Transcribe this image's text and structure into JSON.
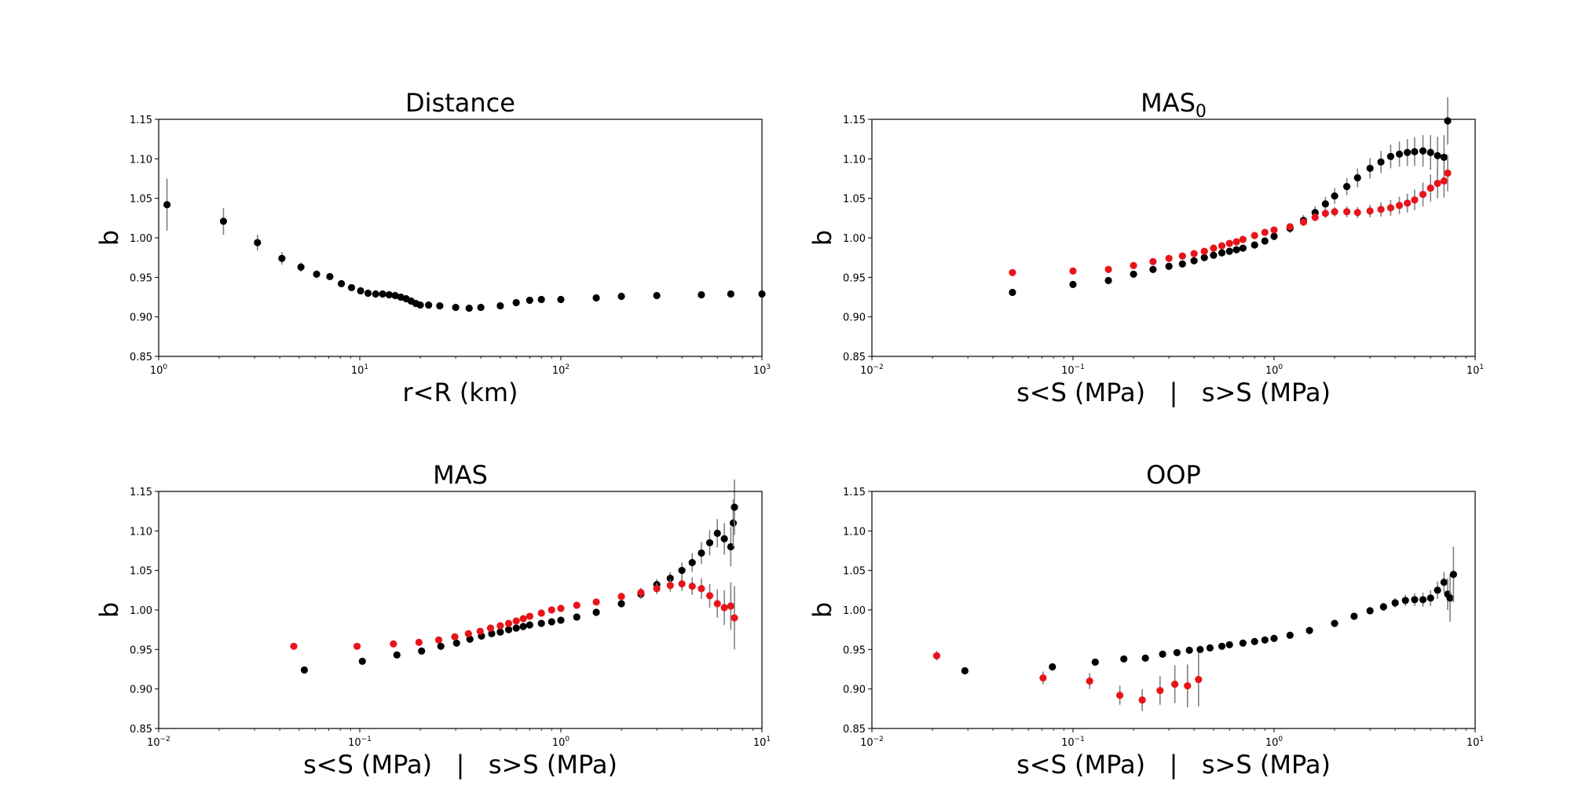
{
  "chart_data": [
    {
      "type": "scatter",
      "title": "Distance",
      "xlabel": "r<R (km)",
      "ylabel": "b",
      "xscale": "log",
      "xlim": [
        1,
        1000
      ],
      "ylim": [
        0.85,
        1.15
      ],
      "yticks": [
        "0.85",
        "0.90",
        "0.95",
        "1.00",
        "1.05",
        "1.10",
        "1.15"
      ],
      "xticks": [
        {
          "base": "10",
          "exp": "0"
        },
        {
          "base": "10",
          "exp": "1"
        },
        {
          "base": "10",
          "exp": "2"
        },
        {
          "base": "10",
          "exp": "3"
        }
      ],
      "grid": false,
      "series": [
        {
          "color": "#000000",
          "x": [
            1.1,
            2.1,
            3.1,
            4.1,
            5.1,
            6.1,
            7.1,
            8.1,
            9.1,
            10.1,
            11,
            12,
            13,
            14,
            15,
            16,
            17,
            18,
            19,
            20,
            22,
            25,
            30,
            35,
            40,
            50,
            60,
            70,
            80,
            100,
            150,
            200,
            300,
            500,
            700,
            1000
          ],
          "y": [
            1.042,
            1.021,
            0.994,
            0.974,
            0.963,
            0.954,
            0.951,
            0.942,
            0.937,
            0.933,
            0.93,
            0.929,
            0.929,
            0.928,
            0.927,
            0.925,
            0.923,
            0.92,
            0.917,
            0.915,
            0.915,
            0.914,
            0.912,
            0.911,
            0.912,
            0.914,
            0.918,
            0.921,
            0.922,
            0.922,
            0.924,
            0.926,
            0.927,
            0.928,
            0.929,
            0.929
          ],
          "err": [
            0.033,
            0.017,
            0.01,
            0.008,
            0.006,
            0.005,
            0.004,
            0.003,
            0.003,
            0.003,
            0.002,
            0.002,
            0.002,
            0.002,
            0.002,
            0.002,
            0.002,
            0.002,
            0.002,
            0.002,
            0.002,
            0.002,
            0.002,
            0.002,
            0.002,
            0.002,
            0.002,
            0.002,
            0.002,
            0.002,
            0.002,
            0.002,
            0.002,
            0.002,
            0.002,
            0.002
          ]
        }
      ]
    },
    {
      "type": "scatter",
      "title": "MAS",
      "title_sub": "0",
      "xlabel": "s<S (MPa)   |   s>S (MPa)",
      "ylabel": "b",
      "xscale": "log",
      "xlim": [
        0.01,
        10
      ],
      "ylim": [
        0.85,
        1.15
      ],
      "yticks": [
        "0.85",
        "0.90",
        "0.95",
        "1.00",
        "1.05",
        "1.10",
        "1.15"
      ],
      "xticks": [
        {
          "base": "10",
          "exp": "−2"
        },
        {
          "base": "10",
          "exp": "−1"
        },
        {
          "base": "10",
          "exp": "0"
        },
        {
          "base": "10",
          "exp": "1"
        }
      ],
      "grid": false,
      "series": [
        {
          "color": "#000000",
          "x": [
            0.05,
            0.1,
            0.15,
            0.2,
            0.25,
            0.3,
            0.35,
            0.4,
            0.45,
            0.5,
            0.55,
            0.6,
            0.65,
            0.7,
            0.8,
            0.9,
            1.0,
            1.2,
            1.4,
            1.6,
            1.8,
            2.0,
            2.3,
            2.6,
            3.0,
            3.4,
            3.8,
            4.2,
            4.6,
            5.0,
            5.5,
            6.0,
            6.5,
            7.0,
            7.3
          ],
          "y": [
            0.931,
            0.941,
            0.946,
            0.954,
            0.96,
            0.964,
            0.967,
            0.971,
            0.975,
            0.978,
            0.981,
            0.983,
            0.985,
            0.987,
            0.991,
            0.996,
            1.002,
            1.012,
            1.022,
            1.032,
            1.043,
            1.053,
            1.065,
            1.076,
            1.088,
            1.096,
            1.103,
            1.106,
            1.108,
            1.109,
            1.11,
            1.108,
            1.104,
            1.102,
            1.148
          ],
          "err": [
            0.002,
            0.002,
            0.002,
            0.002,
            0.002,
            0.002,
            0.002,
            0.002,
            0.002,
            0.002,
            0.002,
            0.002,
            0.002,
            0.003,
            0.003,
            0.004,
            0.005,
            0.006,
            0.007,
            0.008,
            0.009,
            0.01,
            0.011,
            0.012,
            0.013,
            0.014,
            0.015,
            0.016,
            0.017,
            0.018,
            0.02,
            0.022,
            0.024,
            0.028,
            0.03
          ]
        },
        {
          "color": "#e8141b",
          "x": [
            0.05,
            0.1,
            0.15,
            0.2,
            0.25,
            0.3,
            0.35,
            0.4,
            0.45,
            0.5,
            0.55,
            0.6,
            0.65,
            0.7,
            0.8,
            0.9,
            1.0,
            1.2,
            1.4,
            1.6,
            1.8,
            2.0,
            2.3,
            2.6,
            3.0,
            3.4,
            3.8,
            4.2,
            4.6,
            5.0,
            5.5,
            6.0,
            6.5,
            7.0,
            7.3
          ],
          "y": [
            0.956,
            0.958,
            0.96,
            0.965,
            0.97,
            0.974,
            0.977,
            0.98,
            0.983,
            0.987,
            0.99,
            0.993,
            0.995,
            0.998,
            1.003,
            1.007,
            1.01,
            1.014,
            1.02,
            1.026,
            1.031,
            1.033,
            1.033,
            1.032,
            1.034,
            1.036,
            1.038,
            1.041,
            1.044,
            1.048,
            1.055,
            1.063,
            1.069,
            1.072,
            1.082
          ],
          "err": [
            0.002,
            0.002,
            0.002,
            0.002,
            0.002,
            0.002,
            0.002,
            0.002,
            0.002,
            0.002,
            0.002,
            0.002,
            0.002,
            0.002,
            0.003,
            0.003,
            0.003,
            0.004,
            0.004,
            0.005,
            0.006,
            0.006,
            0.007,
            0.007,
            0.008,
            0.009,
            0.01,
            0.011,
            0.012,
            0.013,
            0.015,
            0.017,
            0.019,
            0.021,
            0.023
          ]
        }
      ]
    },
    {
      "type": "scatter",
      "title": "MAS",
      "xlabel": "s<S (MPa)   |   s>S (MPa)",
      "ylabel": "b",
      "xscale": "log",
      "xlim": [
        0.01,
        10
      ],
      "ylim": [
        0.85,
        1.15
      ],
      "yticks": [
        "0.85",
        "0.90",
        "0.95",
        "1.00",
        "1.05",
        "1.10",
        "1.15"
      ],
      "xticks": [
        {
          "base": "10",
          "exp": "−2"
        },
        {
          "base": "10",
          "exp": "−1"
        },
        {
          "base": "10",
          "exp": "0"
        },
        {
          "base": "10",
          "exp": "1"
        }
      ],
      "grid": false,
      "series": [
        {
          "color": "#000000",
          "x": [
            0.053,
            0.103,
            0.153,
            0.203,
            0.253,
            0.303,
            0.353,
            0.403,
            0.453,
            0.5,
            0.55,
            0.6,
            0.65,
            0.7,
            0.8,
            0.9,
            1.0,
            1.2,
            1.5,
            2.0,
            2.5,
            3.0,
            3.5,
            4.0,
            4.5,
            5.0,
            5.5,
            6.0,
            6.5,
            7.0,
            7.2,
            7.3
          ],
          "y": [
            0.924,
            0.935,
            0.943,
            0.948,
            0.954,
            0.958,
            0.963,
            0.967,
            0.97,
            0.972,
            0.975,
            0.977,
            0.979,
            0.981,
            0.983,
            0.985,
            0.987,
            0.991,
            0.997,
            1.008,
            1.02,
            1.032,
            1.04,
            1.05,
            1.06,
            1.072,
            1.085,
            1.097,
            1.09,
            1.08,
            1.11,
            1.13
          ],
          "err": [
            0.002,
            0.002,
            0.002,
            0.002,
            0.002,
            0.002,
            0.002,
            0.002,
            0.002,
            0.002,
            0.002,
            0.002,
            0.002,
            0.002,
            0.002,
            0.003,
            0.003,
            0.003,
            0.004,
            0.005,
            0.006,
            0.007,
            0.008,
            0.01,
            0.012,
            0.014,
            0.016,
            0.018,
            0.02,
            0.025,
            0.03,
            0.035
          ]
        },
        {
          "color": "#e8141b",
          "x": [
            0.047,
            0.097,
            0.147,
            0.197,
            0.247,
            0.297,
            0.347,
            0.397,
            0.447,
            0.5,
            0.55,
            0.6,
            0.65,
            0.7,
            0.8,
            0.9,
            1.0,
            1.2,
            1.5,
            2.0,
            2.5,
            3.0,
            3.5,
            4.0,
            4.5,
            5.0,
            5.5,
            6.0,
            6.5,
            7.0,
            7.3
          ],
          "y": [
            0.954,
            0.954,
            0.957,
            0.959,
            0.962,
            0.966,
            0.97,
            0.973,
            0.977,
            0.98,
            0.983,
            0.986,
            0.989,
            0.992,
            0.996,
            1.0,
            1.002,
            1.006,
            1.01,
            1.017,
            1.022,
            1.027,
            1.031,
            1.033,
            1.03,
            1.027,
            1.018,
            1.008,
            1.003,
            1.005,
            0.99
          ],
          "err": [
            0.002,
            0.002,
            0.002,
            0.002,
            0.002,
            0.002,
            0.002,
            0.002,
            0.002,
            0.002,
            0.002,
            0.002,
            0.002,
            0.002,
            0.003,
            0.003,
            0.003,
            0.003,
            0.004,
            0.005,
            0.006,
            0.007,
            0.008,
            0.009,
            0.011,
            0.013,
            0.015,
            0.018,
            0.022,
            0.03,
            0.04
          ]
        }
      ]
    },
    {
      "type": "scatter",
      "title": "OOP",
      "xlabel": "s<S (MPa)   |   s>S (MPa)",
      "ylabel": "b",
      "xscale": "log",
      "xlim": [
        0.01,
        10
      ],
      "ylim": [
        0.85,
        1.15
      ],
      "yticks": [
        "0.85",
        "0.90",
        "0.95",
        "1.00",
        "1.05",
        "1.10",
        "1.15"
      ],
      "xticks": [
        {
          "base": "10",
          "exp": "−2"
        },
        {
          "base": "10",
          "exp": "−1"
        },
        {
          "base": "10",
          "exp": "0"
        },
        {
          "base": "10",
          "exp": "1"
        }
      ],
      "grid": false,
      "series": [
        {
          "color": "#000000",
          "x": [
            0.029,
            0.079,
            0.129,
            0.179,
            0.229,
            0.279,
            0.329,
            0.379,
            0.429,
            0.48,
            0.55,
            0.6,
            0.7,
            0.8,
            0.9,
            1.0,
            1.2,
            1.5,
            2.0,
            2.5,
            3.0,
            3.5,
            4.0,
            4.5,
            5.0,
            5.5,
            6.0,
            6.5,
            7.0,
            7.3,
            7.5,
            7.8
          ],
          "y": [
            0.923,
            0.928,
            0.934,
            0.938,
            0.939,
            0.944,
            0.946,
            0.949,
            0.95,
            0.952,
            0.954,
            0.956,
            0.958,
            0.96,
            0.962,
            0.964,
            0.968,
            0.974,
            0.983,
            0.992,
            0.999,
            1.004,
            1.009,
            1.012,
            1.013,
            1.013,
            1.015,
            1.025,
            1.035,
            1.02,
            1.015,
            1.045
          ],
          "err": [
            0.002,
            0.002,
            0.002,
            0.002,
            0.002,
            0.002,
            0.002,
            0.002,
            0.002,
            0.002,
            0.002,
            0.002,
            0.002,
            0.002,
            0.002,
            0.002,
            0.003,
            0.003,
            0.003,
            0.004,
            0.004,
            0.005,
            0.006,
            0.007,
            0.008,
            0.009,
            0.01,
            0.011,
            0.013,
            0.02,
            0.03,
            0.035
          ]
        },
        {
          "color": "#e8141b",
          "x": [
            0.021,
            0.071,
            0.121,
            0.171,
            0.221,
            0.271,
            0.321,
            0.371,
            0.421
          ],
          "y": [
            0.942,
            0.914,
            0.91,
            0.892,
            0.886,
            0.898,
            0.906,
            0.904,
            0.912
          ],
          "err": [
            0.006,
            0.008,
            0.01,
            0.012,
            0.014,
            0.018,
            0.024,
            0.027,
            0.034
          ]
        }
      ]
    }
  ]
}
